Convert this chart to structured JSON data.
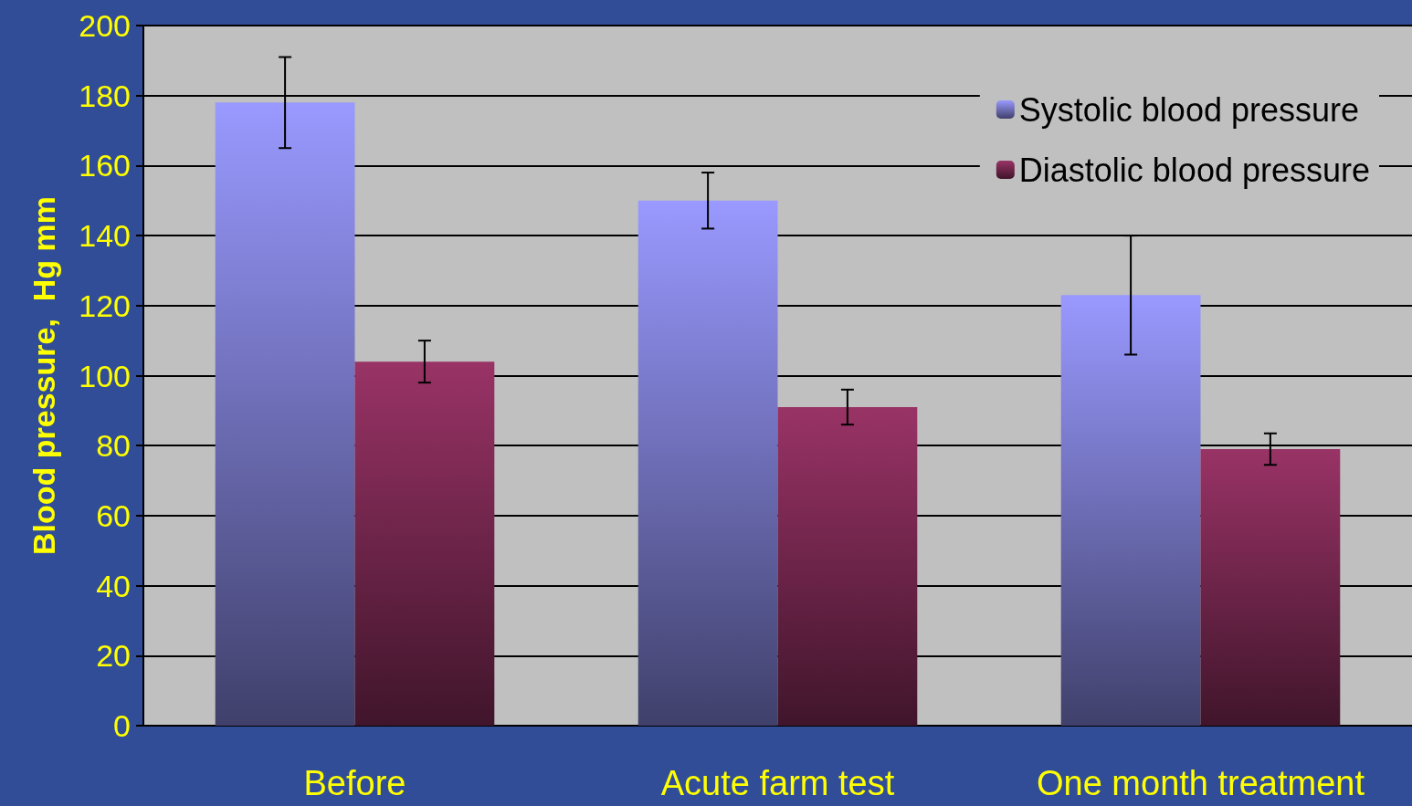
{
  "chart_data": {
    "type": "bar",
    "ylabel": "Blood pressure,  Hg mm",
    "categories": [
      "Before",
      "Acute farm test",
      "One month treatment"
    ],
    "series": [
      {
        "name": "Systolic blood pressure",
        "color": "#9999ff",
        "values": [
          178,
          150,
          123
        ],
        "errors": [
          13,
          8,
          17
        ]
      },
      {
        "name": "Diastolic blood pressure",
        "color": "#993366",
        "values": [
          104,
          91,
          79
        ],
        "errors": [
          6,
          5,
          4.5
        ]
      }
    ],
    "ylim": [
      0,
      200
    ],
    "yticks": [
      0,
      20,
      40,
      60,
      80,
      100,
      120,
      140,
      160,
      180,
      200
    ],
    "grid": "y",
    "legend": "top right"
  }
}
